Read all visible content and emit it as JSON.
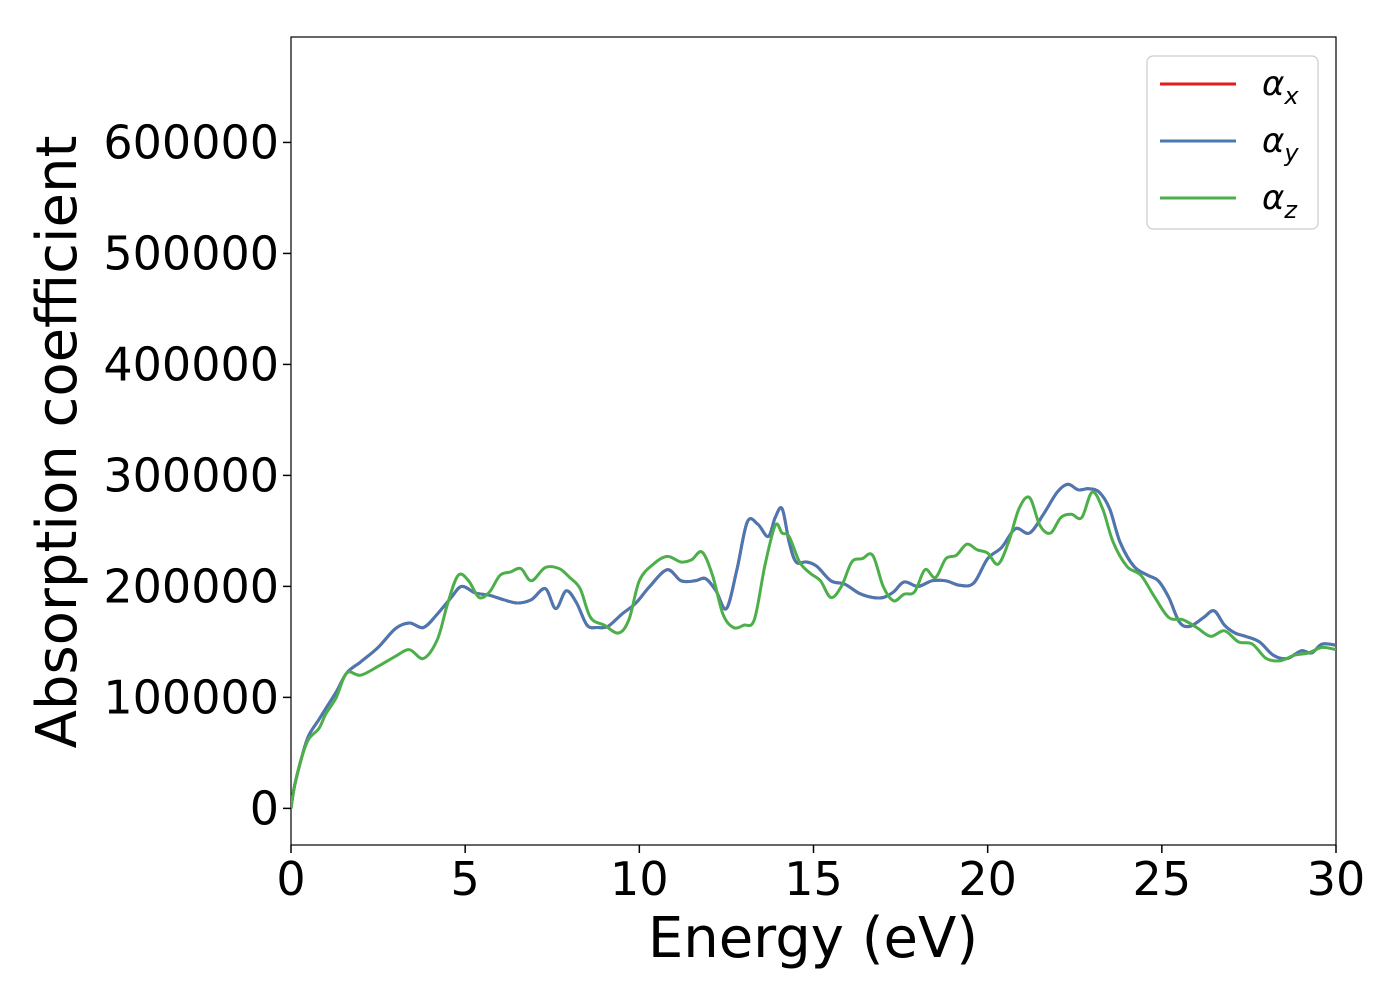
{
  "chart_data": {
    "type": "line",
    "title": "",
    "xlabel": "Energy (eV)",
    "ylabel": "Absorption coefficient",
    "xlim": [
      0,
      30
    ],
    "ylim": [
      -33000,
      695000
    ],
    "xticks": [
      0,
      5,
      10,
      15,
      20,
      25,
      30
    ],
    "yticks": [
      0,
      100000,
      200000,
      300000,
      400000,
      500000,
      600000
    ],
    "grid": false,
    "legend_position": "top-right",
    "series": [
      {
        "name": "α",
        "subscript": "x",
        "color": "#e41a1c",
        "x": [
          0,
          0.1,
          0.3,
          0.5,
          0.8,
          1.0,
          1.3,
          1.6,
          2.0,
          2.5,
          3.0,
          3.4,
          3.8,
          4.2,
          4.6,
          4.9,
          5.3,
          5.7,
          6.1,
          6.5,
          6.9,
          7.3,
          7.6,
          7.9,
          8.2,
          8.5,
          8.8,
          9.1,
          9.5,
          9.9,
          10.3,
          10.8,
          11.2,
          11.6,
          11.9,
          12.2,
          12.5,
          12.8,
          13.1,
          13.4,
          13.7,
          13.9,
          14.1,
          14.3,
          14.5,
          14.8,
          15.1,
          15.5,
          15.9,
          16.3,
          16.7,
          17.0,
          17.3,
          17.6,
          18.0,
          18.4,
          18.8,
          19.2,
          19.6,
          20.0,
          20.4,
          20.8,
          21.2,
          21.6,
          22.0,
          22.3,
          22.6,
          22.9,
          23.2,
          23.5,
          23.8,
          24.2,
          24.6,
          24.9,
          25.2,
          25.5,
          25.8,
          26.2,
          26.5,
          26.8,
          27.1,
          27.4,
          27.8,
          28.2,
          28.6,
          29.0,
          29.3,
          29.6,
          30.0
        ],
        "y": [
          0,
          20000,
          45000,
          65000,
          80000,
          90000,
          105000,
          122000,
          132000,
          145000,
          162000,
          167000,
          163000,
          175000,
          190000,
          200000,
          194000,
          192000,
          188000,
          185000,
          188000,
          198000,
          180000,
          196000,
          185000,
          165000,
          163000,
          164000,
          175000,
          185000,
          200000,
          215000,
          205000,
          205000,
          207000,
          196000,
          180000,
          215000,
          258000,
          256000,
          245000,
          262000,
          270000,
          240000,
          222000,
          222000,
          218000,
          205000,
          202000,
          194000,
          190000,
          190000,
          195000,
          204000,
          200000,
          205000,
          205000,
          201000,
          203000,
          225000,
          235000,
          252000,
          248000,
          265000,
          285000,
          292000,
          287000,
          288000,
          285000,
          270000,
          240000,
          218000,
          210000,
          205000,
          190000,
          168000,
          164000,
          172000,
          178000,
          165000,
          158000,
          155000,
          150000,
          138000,
          135000,
          142000,
          140000,
          148000,
          147000
        ]
      },
      {
        "name": "α",
        "subscript": "y",
        "color": "#4a78b3",
        "x": [
          0,
          0.1,
          0.3,
          0.5,
          0.8,
          1.0,
          1.3,
          1.6,
          2.0,
          2.5,
          3.0,
          3.4,
          3.8,
          4.2,
          4.6,
          4.9,
          5.3,
          5.7,
          6.1,
          6.5,
          6.9,
          7.3,
          7.6,
          7.9,
          8.2,
          8.5,
          8.8,
          9.1,
          9.5,
          9.9,
          10.3,
          10.8,
          11.2,
          11.6,
          11.9,
          12.2,
          12.5,
          12.8,
          13.1,
          13.4,
          13.7,
          13.9,
          14.1,
          14.3,
          14.5,
          14.8,
          15.1,
          15.5,
          15.9,
          16.3,
          16.7,
          17.0,
          17.3,
          17.6,
          18.0,
          18.4,
          18.8,
          19.2,
          19.6,
          20.0,
          20.4,
          20.8,
          21.2,
          21.6,
          22.0,
          22.3,
          22.6,
          22.9,
          23.2,
          23.5,
          23.8,
          24.2,
          24.6,
          24.9,
          25.2,
          25.5,
          25.8,
          26.2,
          26.5,
          26.8,
          27.1,
          27.4,
          27.8,
          28.2,
          28.6,
          29.0,
          29.3,
          29.6,
          30.0
        ],
        "y": [
          0,
          20000,
          45000,
          65000,
          80000,
          90000,
          105000,
          122000,
          132000,
          145000,
          162000,
          167000,
          163000,
          175000,
          190000,
          200000,
          194000,
          192000,
          188000,
          185000,
          188000,
          198000,
          180000,
          196000,
          185000,
          165000,
          163000,
          164000,
          175000,
          185000,
          200000,
          215000,
          205000,
          205000,
          207000,
          196000,
          180000,
          215000,
          258000,
          256000,
          245000,
          262000,
          270000,
          240000,
          222000,
          222000,
          218000,
          205000,
          202000,
          194000,
          190000,
          190000,
          195000,
          204000,
          200000,
          205000,
          205000,
          201000,
          203000,
          225000,
          235000,
          252000,
          248000,
          265000,
          285000,
          292000,
          287000,
          288000,
          285000,
          270000,
          240000,
          218000,
          210000,
          205000,
          190000,
          168000,
          164000,
          172000,
          178000,
          165000,
          158000,
          155000,
          150000,
          138000,
          135000,
          142000,
          140000,
          148000,
          147000
        ]
      },
      {
        "name": "α",
        "subscript": "z",
        "color": "#4daf4a",
        "x": [
          0,
          0.1,
          0.3,
          0.5,
          0.8,
          1.0,
          1.3,
          1.6,
          2.0,
          2.5,
          3.0,
          3.4,
          3.8,
          4.2,
          4.5,
          4.8,
          5.1,
          5.4,
          5.7,
          6.0,
          6.3,
          6.6,
          6.9,
          7.3,
          7.7,
          8.0,
          8.3,
          8.6,
          9.0,
          9.4,
          9.7,
          10.0,
          10.4,
          10.8,
          11.2,
          11.5,
          11.8,
          12.1,
          12.4,
          12.7,
          13.0,
          13.3,
          13.6,
          13.9,
          14.1,
          14.3,
          14.6,
          14.9,
          15.2,
          15.5,
          15.8,
          16.1,
          16.4,
          16.7,
          17.0,
          17.3,
          17.6,
          17.9,
          18.2,
          18.5,
          18.8,
          19.1,
          19.4,
          19.7,
          20.0,
          20.3,
          20.6,
          20.9,
          21.2,
          21.5,
          21.8,
          22.1,
          22.4,
          22.7,
          23.0,
          23.3,
          23.6,
          24.0,
          24.4,
          24.8,
          25.2,
          25.6,
          26.0,
          26.4,
          26.8,
          27.2,
          27.6,
          28.0,
          28.4,
          28.8,
          29.2,
          29.6,
          30.0
        ],
        "y": [
          0,
          20000,
          45000,
          62000,
          72000,
          85000,
          100000,
          122000,
          120000,
          128000,
          137000,
          143000,
          135000,
          152000,
          185000,
          210000,
          205000,
          190000,
          195000,
          210000,
          213000,
          216000,
          205000,
          217000,
          216000,
          208000,
          198000,
          172000,
          165000,
          158000,
          170000,
          205000,
          220000,
          227000,
          222000,
          224000,
          231000,
          210000,
          175000,
          163000,
          165000,
          170000,
          218000,
          255000,
          248000,
          245000,
          222000,
          212000,
          205000,
          190000,
          200000,
          222000,
          225000,
          228000,
          200000,
          187000,
          193000,
          195000,
          215000,
          208000,
          225000,
          228000,
          238000,
          233000,
          230000,
          220000,
          240000,
          270000,
          280000,
          255000,
          248000,
          262000,
          265000,
          262000,
          285000,
          270000,
          240000,
          218000,
          210000,
          190000,
          172000,
          170000,
          163000,
          155000,
          160000,
          150000,
          148000,
          135000,
          133000,
          138000,
          140000,
          145000,
          143000
        ]
      }
    ]
  }
}
